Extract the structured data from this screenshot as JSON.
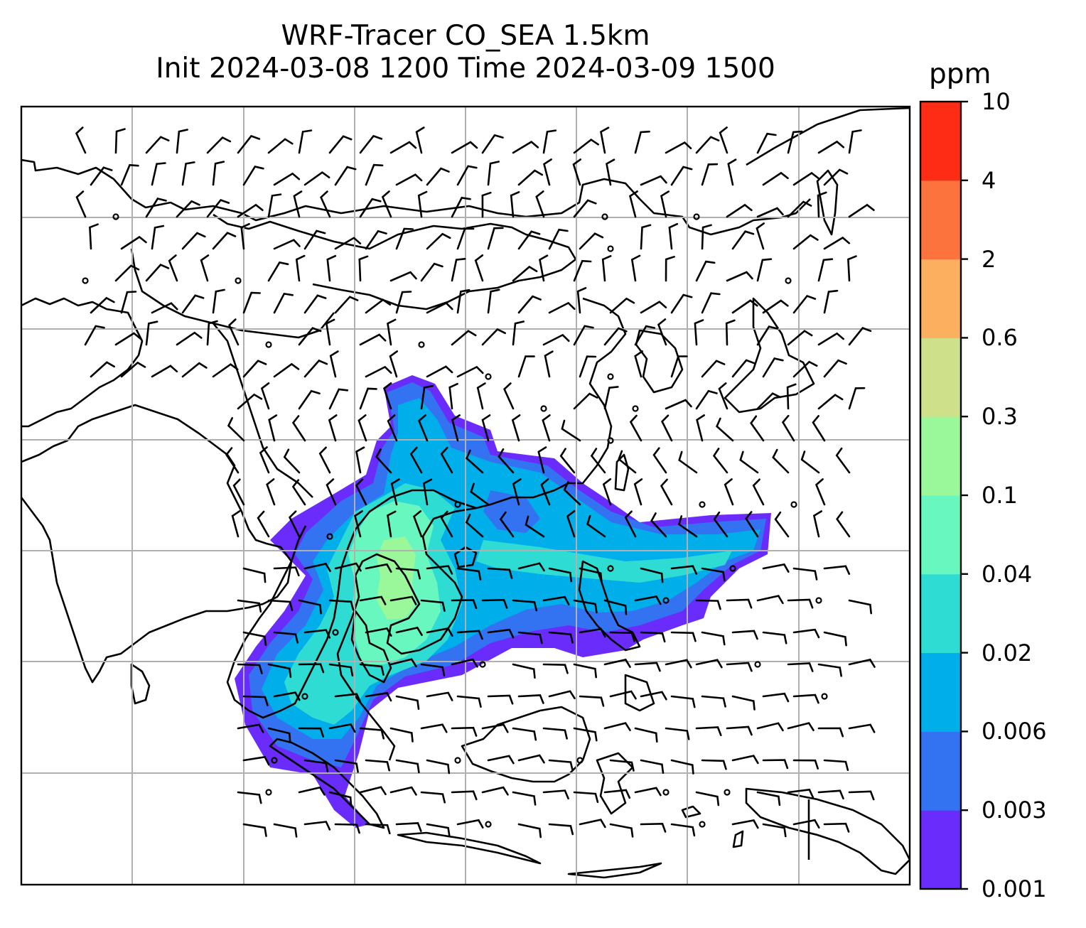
{
  "title": {
    "line1": "WRF-Tracer CO_SEA 1.5km",
    "line2": "Init 2024-03-08 1200 Time 2024-03-09 1500"
  },
  "colorbar": {
    "unit": "ppm",
    "levels": [
      "0.001",
      "0.003",
      "0.006",
      "0.02",
      "0.04",
      "0.1",
      "0.3",
      "0.6",
      "2",
      "4",
      "10"
    ],
    "colors": [
      "#6a2cfa",
      "#3373f2",
      "#00aeea",
      "#2fdcd4",
      "#68f7bf",
      "#9af79a",
      "#cfe08a",
      "#fdaf60",
      "#fd733d",
      "#fe2b15"
    ]
  },
  "map": {
    "gridlines": true,
    "wind_barbs": true,
    "coastlines": true,
    "field": "CO tracer concentration"
  }
}
